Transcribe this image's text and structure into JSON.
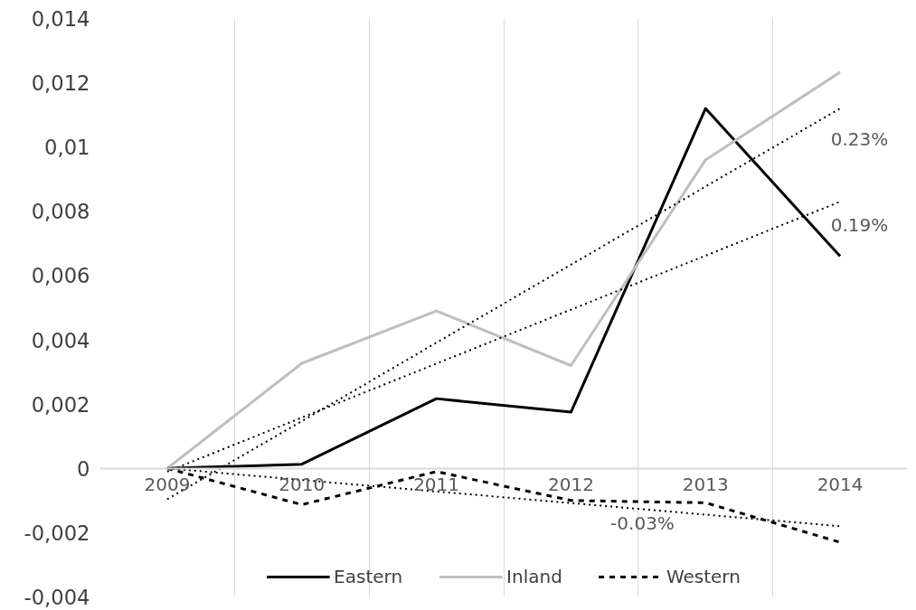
{
  "chart_data": {
    "type": "line",
    "categories": [
      "2009",
      "2010",
      "2011",
      "2012",
      "2013",
      "2014"
    ],
    "series": [
      {
        "name": "Eastern",
        "color": "#000000",
        "values": [
          0,
          0.00013,
          0.00217,
          0.00175,
          0.0112,
          0.0066
        ],
        "line_style": "solid"
      },
      {
        "name": "Inland",
        "color": "#bfbfbf",
        "values": [
          0,
          0.00327,
          0.0049,
          0.0032,
          0.0096,
          0.01233
        ],
        "line_style": "solid"
      },
      {
        "name": "Western",
        "color": "#000000",
        "values": [
          0,
          -0.00113,
          -0.0001,
          -0.001,
          -0.00107,
          -0.0023
        ],
        "line_style": "dashed"
      },
      {
        "color": "#000000",
        "values": [
          -0.00096,
          0.00147,
          0.00391,
          0.00634,
          0.00877,
          0.0112
        ],
        "line_style": "dotted"
      },
      {
        "color": "#000000",
        "values": [
          -0.0001,
          0.00158,
          0.00326,
          0.00494,
          0.00662,
          0.0083
        ],
        "line_style": "dotted"
      },
      {
        "color": "#000000",
        "values": [
          0,
          -0.00036,
          -0.00072,
          -0.00108,
          -0.00144,
          -0.0018
        ],
        "line_style": "dotted"
      }
    ],
    "ylim": [
      -0.004,
      0.014
    ],
    "yticks": [
      {
        "value": -0.004,
        "label": "-0,004"
      },
      {
        "value": -0.002,
        "label": "-0,002"
      },
      0,
      {
        "value": 0.002,
        "label": "0,002"
      },
      {
        "value": 0.004,
        "label": "0,004"
      },
      {
        "value": 0.006,
        "label": "0,006"
      },
      {
        "value": 0.008,
        "label": "0,008"
      },
      {
        "value": 0.01,
        "label": "0,01"
      },
      {
        "value": 0.012,
        "label": "0,012"
      },
      {
        "value": 0.014,
        "label": "0,014"
      }
    ],
    "annotations": [
      "0.23%",
      "0.19%",
      "-0.03%"
    ],
    "grid": "x",
    "legend": "bottom",
    "marker": "none"
  }
}
